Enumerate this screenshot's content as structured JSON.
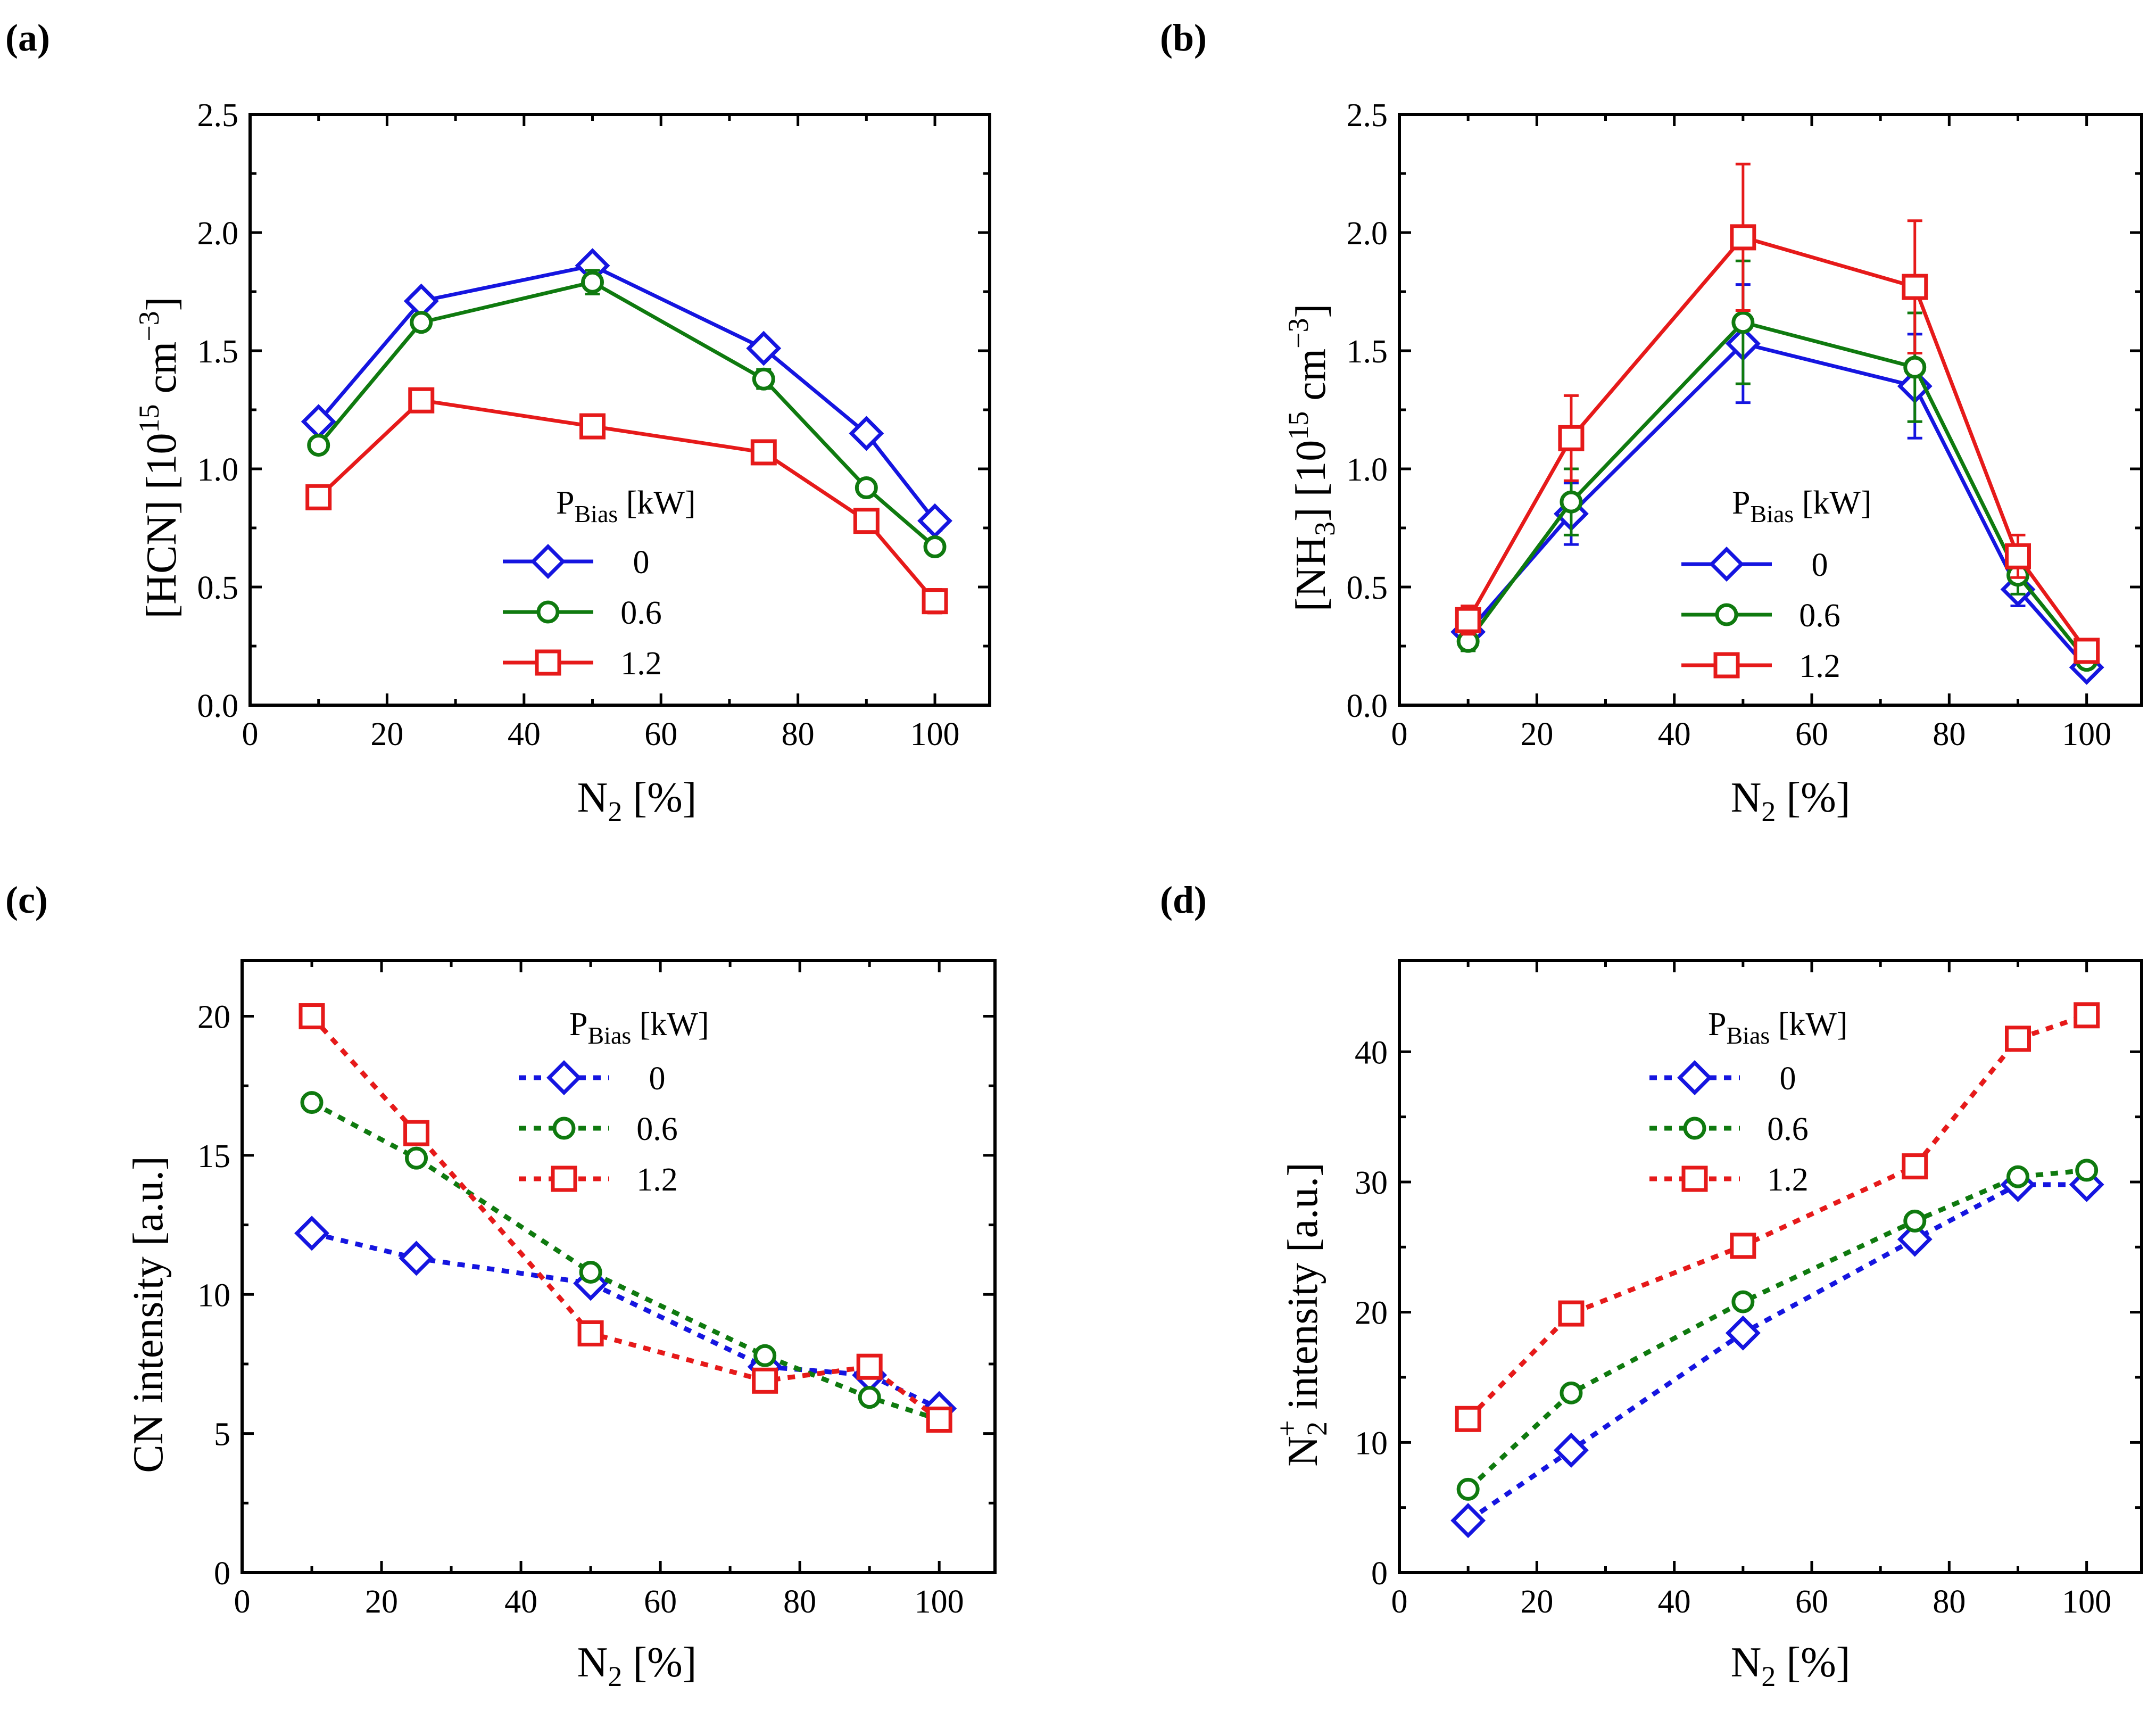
{
  "colors": {
    "blue": "#1515e0",
    "green": "#0f7a0f",
    "red": "#e61a1a"
  },
  "chart_data": [
    {
      "type": "line",
      "panel": "(a)",
      "x": [
        10,
        25,
        50,
        75,
        90,
        100
      ],
      "xlabel_main": "N",
      "xlabel_sub": "2",
      "xlabel_rest": " [%]",
      "ylabel_main": "[HCN] [10",
      "ylabel_sup1": "15",
      "ylabel_mid": " cm",
      "ylabel_sup2": "−3",
      "ylabel_end": "]",
      "xlim": [
        0,
        108
      ],
      "ylim": [
        0,
        2.5
      ],
      "xticks": [
        0,
        20,
        40,
        60,
        80,
        100
      ],
      "xticklabels": [
        "0",
        "20",
        "40",
        "60",
        "80",
        "100"
      ],
      "yticks": [
        0,
        0.5,
        1.0,
        1.5,
        2.0,
        2.5
      ],
      "yticklabels": [
        "0.0",
        "0.5",
        "1.0",
        "1.5",
        "2.0",
        "2.5"
      ],
      "line_style": "solid",
      "legend_title_main": "P",
      "legend_title_sub": "Bias",
      "legend_title_rest": " [kW]",
      "series": [
        {
          "name": "0",
          "color": "#1515e0",
          "marker": "diamond",
          "values": [
            1.2,
            1.71,
            1.86,
            1.51,
            1.15,
            0.78
          ],
          "errors": [
            0.02,
            0.02,
            0.02,
            0.03,
            0.02,
            0.04
          ]
        },
        {
          "name": "0.6",
          "color": "#0f7a0f",
          "marker": "circle",
          "values": [
            1.1,
            1.62,
            1.79,
            1.38,
            0.92,
            0.67
          ],
          "errors": [
            0.02,
            0.03,
            0.05,
            0.04,
            0.02,
            0.03
          ]
        },
        {
          "name": "1.2",
          "color": "#e61a1a",
          "marker": "square",
          "values": [
            0.88,
            1.29,
            1.18,
            1.07,
            0.78,
            0.44
          ],
          "errors": [
            0.02,
            0.02,
            0.02,
            0.02,
            0.03,
            0.05
          ]
        }
      ]
    },
    {
      "type": "line",
      "panel": "(b)",
      "x": [
        10,
        25,
        50,
        75,
        90,
        100
      ],
      "xlabel_main": "N",
      "xlabel_sub": "2",
      "xlabel_rest": " [%]",
      "ylabel_main": "[NH",
      "ylabel_sub": "3",
      "ylabel_main2": "] [10",
      "ylabel_sup1": "15",
      "ylabel_mid": " cm",
      "ylabel_sup2": "−3",
      "ylabel_end": "]",
      "xlim": [
        0,
        108
      ],
      "ylim": [
        0,
        2.5
      ],
      "xticks": [
        0,
        20,
        40,
        60,
        80,
        100
      ],
      "xticklabels": [
        "0",
        "20",
        "40",
        "60",
        "80",
        "100"
      ],
      "yticks": [
        0,
        0.5,
        1.0,
        1.5,
        2.0,
        2.5
      ],
      "yticklabels": [
        "0.0",
        "0.5",
        "1.0",
        "1.5",
        "2.0",
        "2.5"
      ],
      "line_style": "solid",
      "legend_title_main": "P",
      "legend_title_sub": "Bias",
      "legend_title_rest": " [kW]",
      "series": [
        {
          "name": "0",
          "color": "#1515e0",
          "marker": "diamond",
          "values": [
            0.31,
            0.81,
            1.53,
            1.35,
            0.49,
            0.16
          ],
          "errors": [
            0.03,
            0.13,
            0.25,
            0.22,
            0.07,
            0.02
          ]
        },
        {
          "name": "0.6",
          "color": "#0f7a0f",
          "marker": "circle",
          "values": [
            0.27,
            0.86,
            1.62,
            1.43,
            0.55,
            0.19
          ],
          "errors": [
            0.04,
            0.14,
            0.26,
            0.23,
            0.08,
            0.03
          ]
        },
        {
          "name": "1.2",
          "color": "#e61a1a",
          "marker": "square",
          "values": [
            0.36,
            1.13,
            1.98,
            1.77,
            0.63,
            0.23
          ],
          "errors": [
            0.06,
            0.18,
            0.31,
            0.28,
            0.09,
            0.03
          ]
        }
      ]
    },
    {
      "type": "line",
      "panel": "(c)",
      "x": [
        10,
        25,
        50,
        75,
        90,
        100
      ],
      "xlabel_main": "N",
      "xlabel_sub": "2",
      "xlabel_rest": " [%]",
      "ylabel_main": "CN intensity [a.u.]",
      "xlim": [
        0,
        108
      ],
      "ylim": [
        0,
        22
      ],
      "xticks": [
        0,
        20,
        40,
        60,
        80,
        100
      ],
      "xticklabels": [
        "0",
        "20",
        "40",
        "60",
        "80",
        "100"
      ],
      "yticks": [
        0,
        5,
        10,
        15,
        20
      ],
      "yticklabels": [
        "0",
        "5",
        "10",
        "15",
        "20"
      ],
      "line_style": "dotted",
      "legend_title_main": "P",
      "legend_title_sub": "Bias",
      "legend_title_rest": " [kW]",
      "series": [
        {
          "name": "0",
          "color": "#1515e0",
          "marker": "diamond",
          "values": [
            12.2,
            11.3,
            10.4,
            7.4,
            7.1,
            5.9
          ]
        },
        {
          "name": "0.6",
          "color": "#0f7a0f",
          "marker": "circle",
          "values": [
            16.9,
            14.9,
            10.8,
            7.8,
            6.3,
            5.5
          ]
        },
        {
          "name": "1.2",
          "color": "#e61a1a",
          "marker": "square",
          "values": [
            20.0,
            15.8,
            8.6,
            6.9,
            7.4,
            5.5
          ]
        }
      ]
    },
    {
      "type": "line",
      "panel": "(d)",
      "x": [
        10,
        25,
        50,
        75,
        90,
        100
      ],
      "xlabel_main": "N",
      "xlabel_sub": "2",
      "xlabel_rest": " [%]",
      "ylabel_main": "N",
      "ylabel_sub": "2",
      "ylabel_sup": "+",
      "ylabel_rest": " intensity [a.u.]",
      "xlim": [
        0,
        108
      ],
      "ylim": [
        0,
        47
      ],
      "xticks": [
        0,
        20,
        40,
        60,
        80,
        100
      ],
      "xticklabels": [
        "0",
        "20",
        "40",
        "60",
        "80",
        "100"
      ],
      "yticks": [
        0,
        10,
        20,
        30,
        40
      ],
      "yticklabels": [
        "0",
        "10",
        "20",
        "30",
        "40"
      ],
      "line_style": "dotted",
      "legend_title_main": "P",
      "legend_title_sub": "Bias",
      "legend_title_rest": " [kW]",
      "series": [
        {
          "name": "0",
          "color": "#1515e0",
          "marker": "diamond",
          "values": [
            4.0,
            9.4,
            18.4,
            25.6,
            29.8,
            29.8
          ]
        },
        {
          "name": "0.6",
          "color": "#0f7a0f",
          "marker": "circle",
          "values": [
            6.4,
            13.8,
            20.8,
            27.0,
            30.4,
            30.9
          ]
        },
        {
          "name": "1.2",
          "color": "#e61a1a",
          "marker": "square",
          "values": [
            11.8,
            19.9,
            25.1,
            31.2,
            41.0,
            42.8
          ]
        }
      ]
    }
  ]
}
